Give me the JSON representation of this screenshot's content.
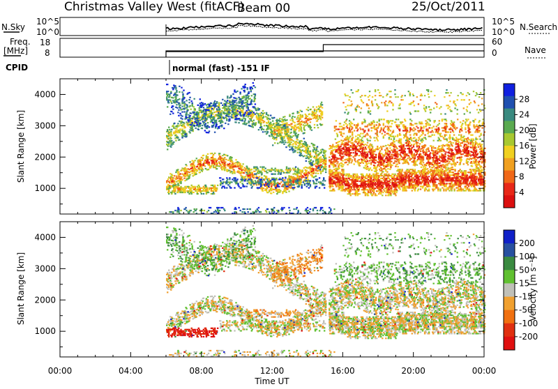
{
  "header": {
    "title": "Christmas Valley West (fitACF)",
    "beam": "Beam 00",
    "date": "25/Oct/2011"
  },
  "noise_panel": {
    "left_label": "N.Sky",
    "left_ticks": [
      "10^5",
      "10^0"
    ],
    "right_ticks": [
      "10^5",
      "10^0"
    ],
    "right_label": "N.Search"
  },
  "freq_panel": {
    "left_label_top": "Freq.",
    "left_label_bottom": "[MHz]",
    "left_ticks": [
      "18",
      "8"
    ],
    "right_ticks": [
      "60",
      "0"
    ],
    "right_label": "Nave"
  },
  "cpid": {
    "label": "CPID",
    "value": "normal (fast) -151 IF"
  },
  "chart_data": [
    {
      "type": "heatmap",
      "name": "power",
      "ylabel": "Slant Range [km]",
      "yticks": [
        "4000",
        "3000",
        "2000",
        "1000"
      ],
      "ylim": [
        180,
        4500
      ],
      "xlim": [
        0,
        24
      ],
      "colorbar_label": "Power [dB]",
      "colorbar_ticks": [
        "28",
        "24",
        "20",
        "16",
        "12",
        "8",
        "4"
      ],
      "colors": [
        "#1020e0",
        "#2050b0",
        "#3a8a80",
        "#5aaa50",
        "#a8c830",
        "#f0d020",
        "#f0a020",
        "#f06818",
        "#e82818",
        "#dc1010"
      ]
    },
    {
      "type": "heatmap",
      "name": "velocity",
      "ylabel": "Slant Range [km]",
      "yticks": [
        "4000",
        "3000",
        "2000",
        "1000"
      ],
      "ylim": [
        180,
        4500
      ],
      "xlim": [
        0,
        24
      ],
      "xlabel": "Time UT",
      "xticks": [
        "00:00",
        "04:00",
        "08:00",
        "12:00",
        "16:00",
        "20:00",
        "00:00"
      ],
      "colorbar_label": "Velocity [m s⁻¹]",
      "colorbar_ticks": [
        "200",
        "100",
        "50",
        "15",
        "-15",
        "-50",
        "-100",
        "-200"
      ],
      "colors": [
        "#1020c8",
        "#2850a0",
        "#3a8a40",
        "#60c030",
        "#c0c0b8",
        "#f0a030",
        "#f07010",
        "#e03010",
        "#e01010"
      ]
    }
  ]
}
